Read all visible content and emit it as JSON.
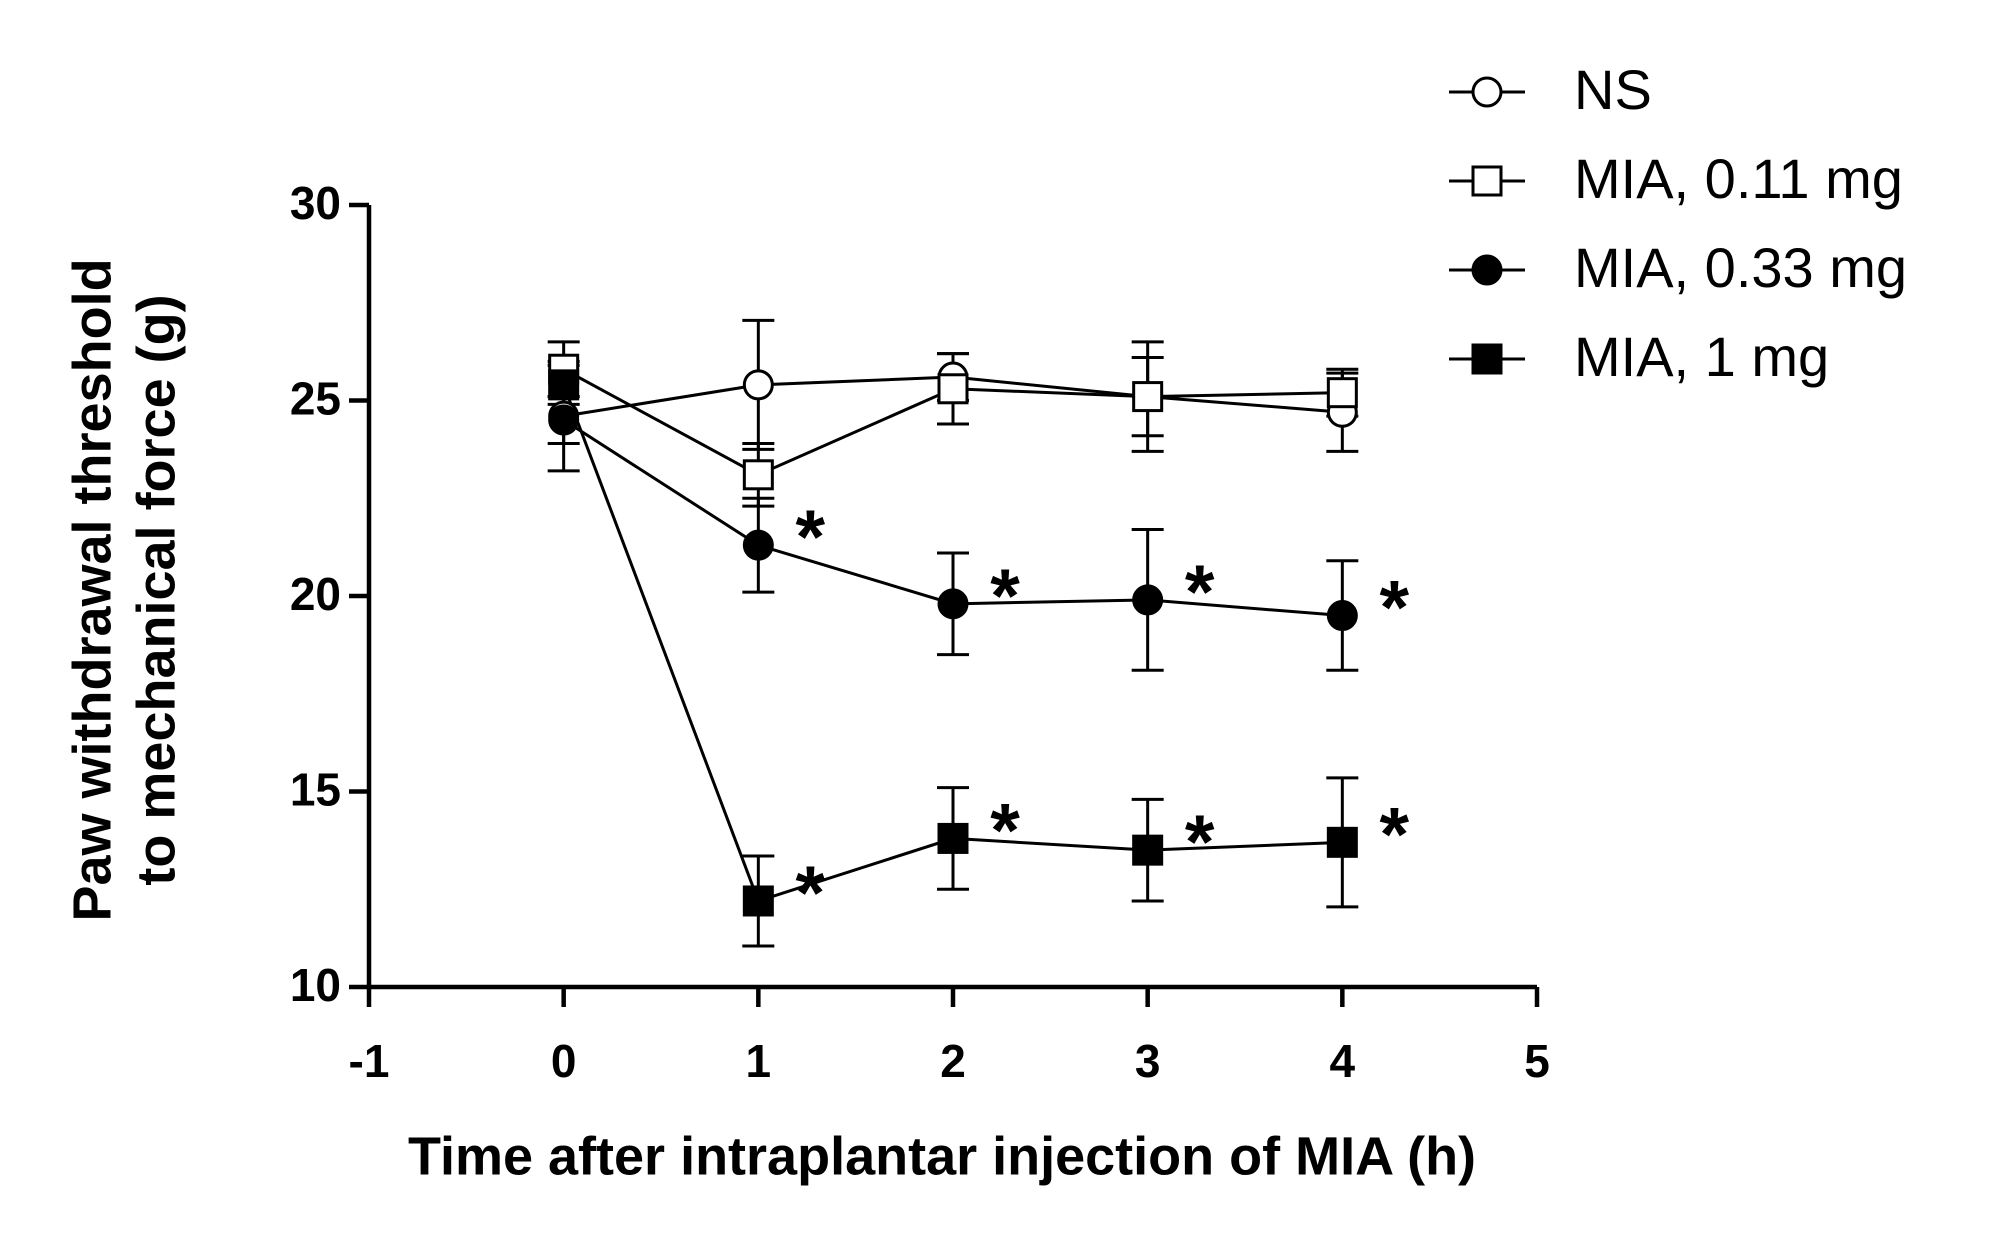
{
  "chart_data": {
    "type": "line",
    "xlabel": "Time after intraplantar injection of MIA (h)",
    "ylabel": [
      "Paw withdrawal threshold",
      "to mechanical force (g)"
    ],
    "x": [
      0,
      1,
      2,
      3,
      4
    ],
    "xlim": [
      -1,
      5
    ],
    "xticks": [
      -1,
      0,
      1,
      2,
      3,
      4,
      5
    ],
    "ylim": [
      10,
      30
    ],
    "yticks": [
      10,
      15,
      20,
      25,
      30
    ],
    "legend": "top-right",
    "series": [
      {
        "name": "NS",
        "color": "#000000",
        "marker": "circle",
        "filled": false,
        "values": [
          24.6,
          25.4,
          25.6,
          25.1,
          24.7
        ],
        "errors": [
          1.4,
          1.65,
          0.6,
          1.4,
          1.0
        ],
        "significance": [
          null,
          null,
          null,
          null,
          null
        ]
      },
      {
        "name": "MIA, 0.11 mg",
        "color": "#000000",
        "marker": "square",
        "filled": false,
        "values": [
          25.8,
          23.1,
          25.3,
          25.1,
          25.2
        ],
        "errors": [
          0.7,
          0.8,
          0.9,
          1.0,
          0.6
        ],
        "significance": [
          null,
          null,
          null,
          null,
          null
        ]
      },
      {
        "name": "MIA, 0.33 mg",
        "color": "#000000",
        "marker": "circle",
        "filled": true,
        "values": [
          24.5,
          21.3,
          19.8,
          19.9,
          19.5
        ],
        "errors": [
          0.6,
          1.2,
          1.3,
          1.8,
          1.4
        ],
        "significance": [
          null,
          "*",
          "*",
          "*",
          "*"
        ]
      },
      {
        "name": "MIA, 1 mg",
        "color": "#000000",
        "marker": "square",
        "filled": true,
        "values": [
          25.4,
          12.2,
          13.8,
          13.5,
          13.7
        ],
        "errors": [
          0.5,
          1.15,
          1.3,
          1.3,
          1.65
        ],
        "significance": [
          null,
          "*",
          "*",
          "*",
          "*"
        ]
      }
    ]
  }
}
